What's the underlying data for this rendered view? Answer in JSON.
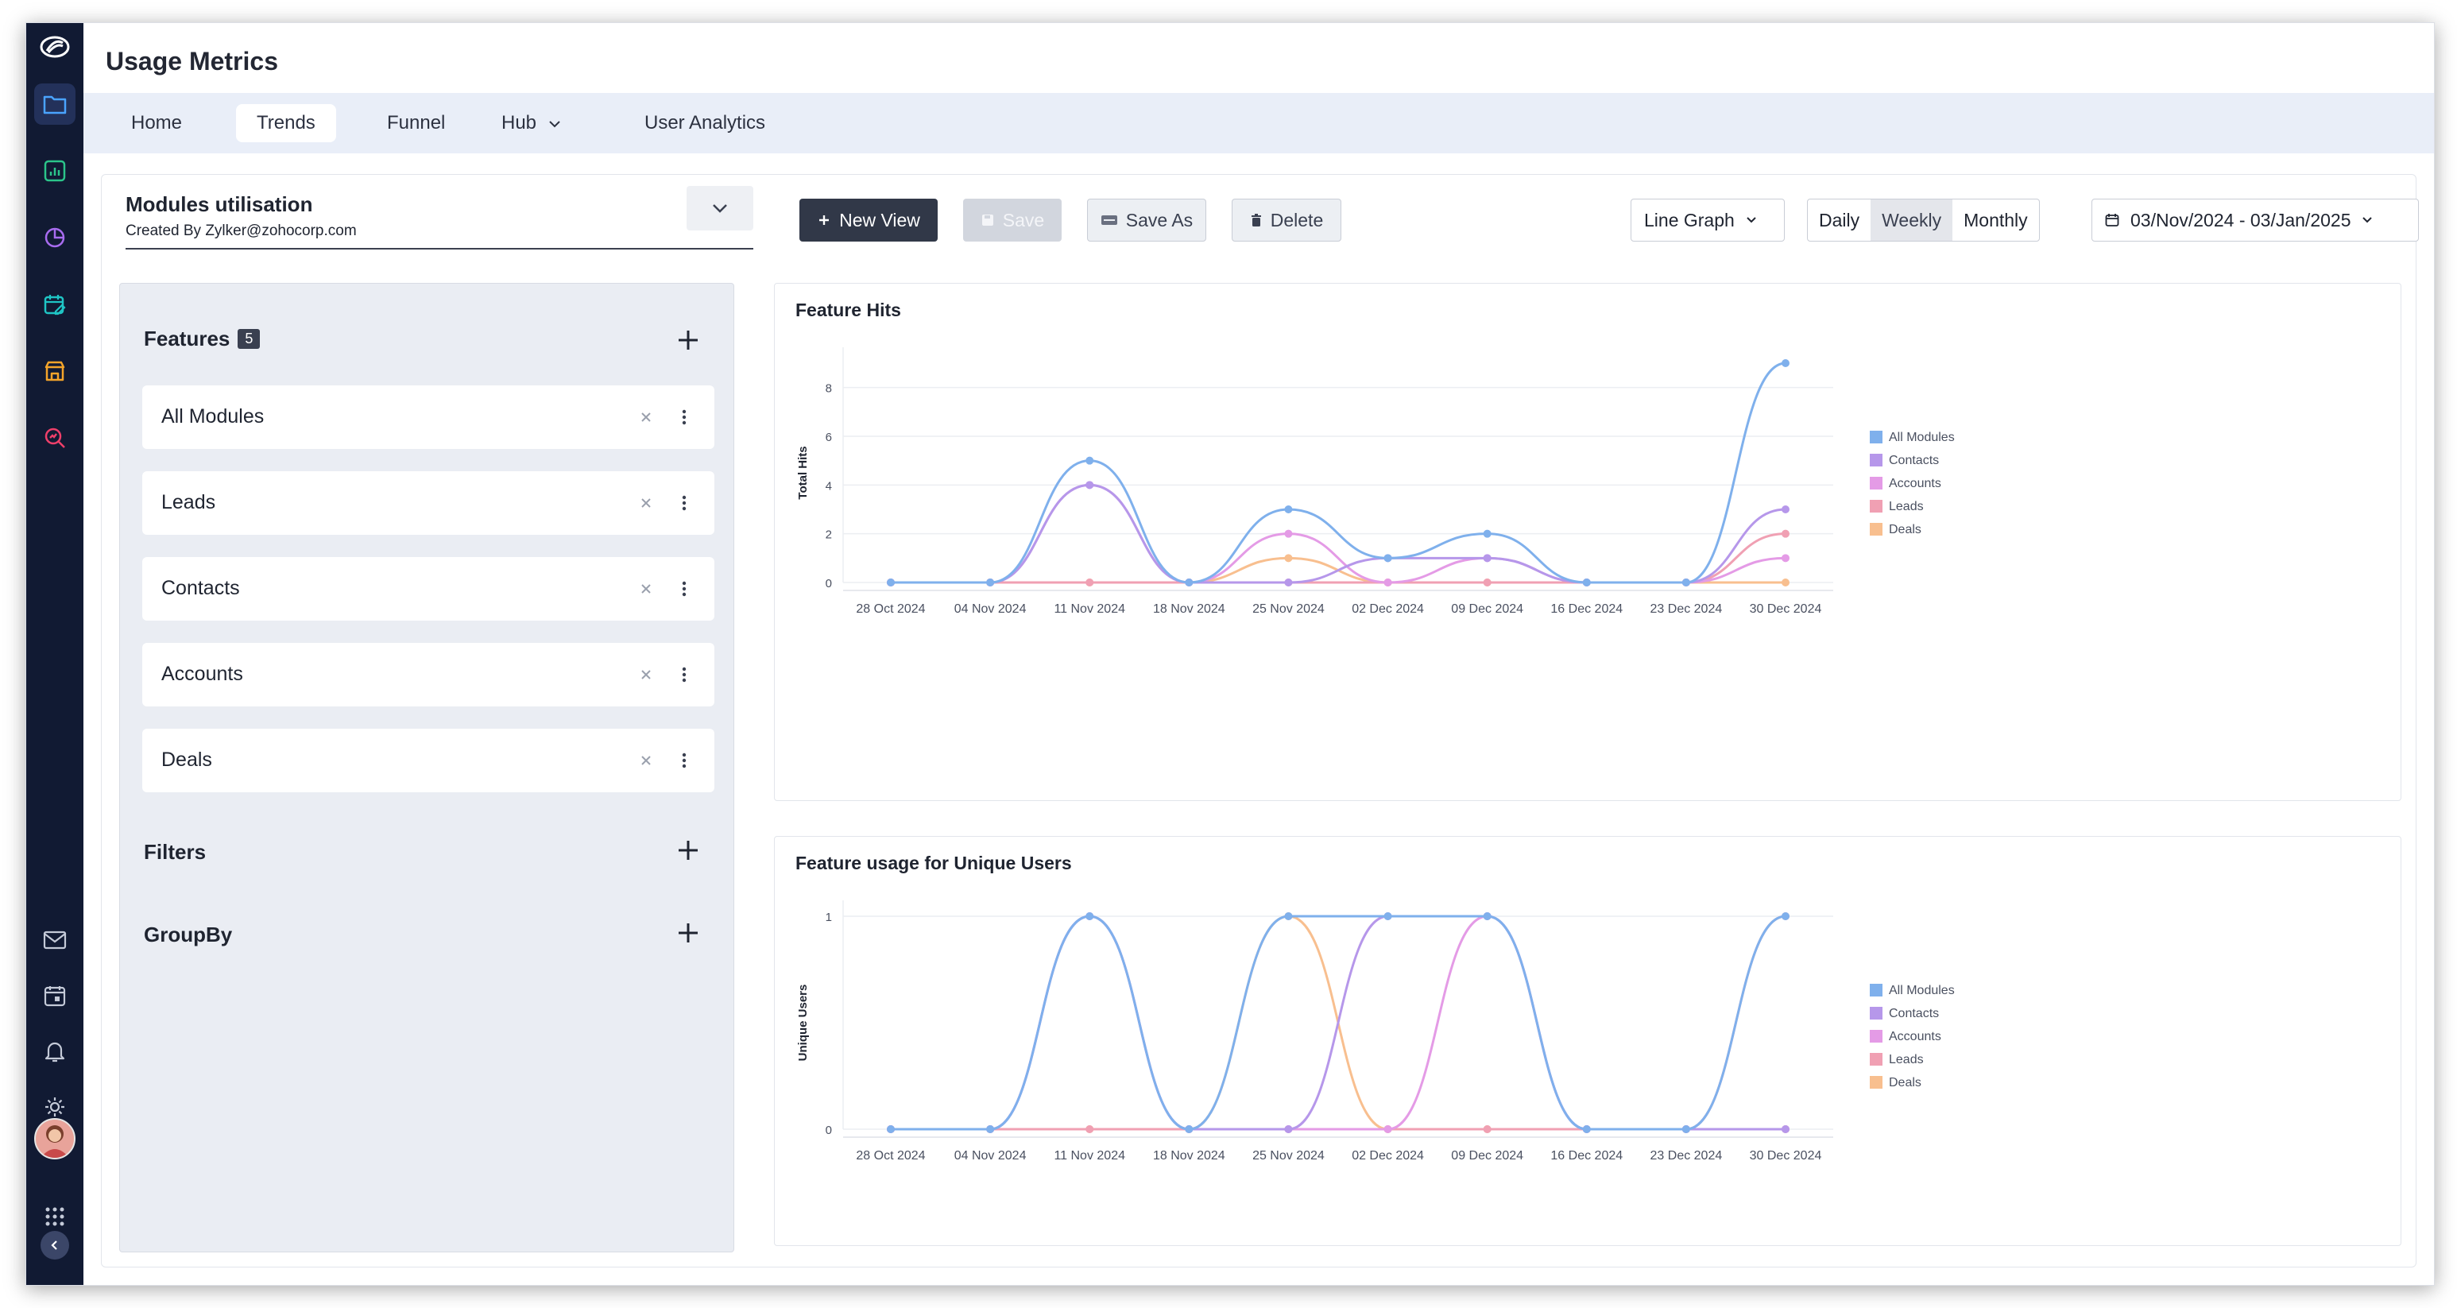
{
  "app": {
    "title": "Usage Metrics"
  },
  "nav": {
    "tabs": [
      {
        "label": "Home"
      },
      {
        "label": "Trends"
      },
      {
        "label": "Funnel"
      },
      {
        "label": "Hub"
      },
      {
        "label": "User Analytics"
      }
    ],
    "active_tab": "Trends"
  },
  "sidebar_icons": [
    "folder-icon",
    "bar-chart-icon",
    "pie-chart-icon",
    "calendar-edit-icon",
    "store-icon",
    "search-analytics-icon",
    "mail-icon",
    "calendar-icon",
    "bell-icon",
    "gear-icon",
    "apps-grid-icon"
  ],
  "view": {
    "name": "Modules utilisation",
    "created_by": "Created By Zylker@zohocorp.com"
  },
  "toolbar": {
    "new_view": "New View",
    "save": "Save",
    "save_as": "Save As",
    "delete": "Delete",
    "graph_type": "Line Graph",
    "periods": [
      "Daily",
      "Weekly",
      "Monthly"
    ],
    "active_period": "Weekly",
    "date_range": "03/Nov/2024 - 03/Jan/2025"
  },
  "panel": {
    "features_title": "Features",
    "features_count": "5",
    "features": [
      "All Modules",
      "Leads",
      "Contacts",
      "Accounts",
      "Deals"
    ],
    "filters_title": "Filters",
    "groupby_title": "GroupBy"
  },
  "colors": {
    "All Modules": "#7fb0ec",
    "Contacts": "#b697ea",
    "Accounts": "#e49be6",
    "Leads": "#f0a0b3",
    "Deals": "#f8bf8f"
  },
  "chart_data": [
    {
      "type": "line",
      "title": "Feature Hits",
      "xlabel": "",
      "ylabel": "Total Hits",
      "categories": [
        "28 Oct 2024",
        "04 Nov 2024",
        "11 Nov 2024",
        "18 Nov 2024",
        "25 Nov 2024",
        "02 Dec 2024",
        "09 Dec 2024",
        "16 Dec 2024",
        "23 Dec 2024",
        "30 Dec 2024"
      ],
      "yticks": [
        0,
        2,
        4,
        6,
        8
      ],
      "ylim": [
        0,
        9
      ],
      "legend": "right",
      "series": [
        {
          "name": "All Modules",
          "values": [
            0,
            0,
            5,
            0,
            3,
            1,
            2,
            0,
            0,
            9
          ]
        },
        {
          "name": "Contacts",
          "values": [
            0,
            0,
            4,
            0,
            0,
            1,
            1,
            0,
            0,
            3
          ]
        },
        {
          "name": "Accounts",
          "values": [
            0,
            0,
            4,
            0,
            2,
            0,
            1,
            0,
            0,
            1
          ]
        },
        {
          "name": "Leads",
          "values": [
            0,
            0,
            0,
            0,
            0,
            0,
            0,
            0,
            0,
            2
          ]
        },
        {
          "name": "Deals",
          "values": [
            0,
            0,
            0,
            0,
            1,
            0,
            0,
            0,
            0,
            0
          ]
        }
      ]
    },
    {
      "type": "line",
      "title": "Feature usage for Unique Users",
      "xlabel": "",
      "ylabel": "Unique Users",
      "categories": [
        "28 Oct 2024",
        "04 Nov 2024",
        "11 Nov 2024",
        "18 Nov 2024",
        "25 Nov 2024",
        "02 Dec 2024",
        "09 Dec 2024",
        "16 Dec 2024",
        "23 Dec 2024",
        "30 Dec 2024"
      ],
      "yticks": [
        0,
        1
      ],
      "ylim": [
        0,
        1
      ],
      "legend": "right",
      "series": [
        {
          "name": "All Modules",
          "values": [
            0,
            0,
            1,
            0,
            1,
            1,
            1,
            0,
            0,
            1
          ]
        },
        {
          "name": "Contacts",
          "values": [
            0,
            0,
            1,
            0,
            0,
            1,
            1,
            0,
            0,
            0
          ]
        },
        {
          "name": "Accounts",
          "values": [
            0,
            0,
            1,
            0,
            0,
            0,
            1,
            0,
            0,
            0
          ]
        },
        {
          "name": "Leads",
          "values": [
            0,
            0,
            0,
            0,
            0,
            0,
            0,
            0,
            0,
            1
          ]
        },
        {
          "name": "Deals",
          "values": [
            0,
            0,
            0,
            0,
            1,
            0,
            0,
            0,
            0,
            0
          ]
        }
      ]
    }
  ]
}
